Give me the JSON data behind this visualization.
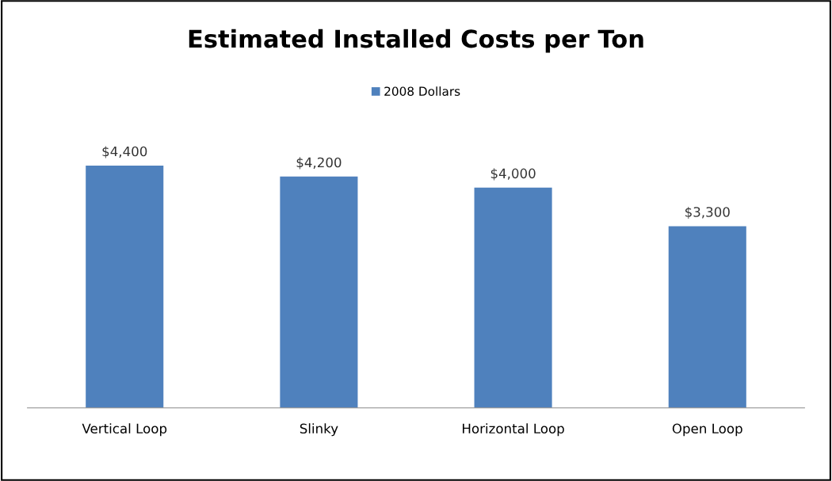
{
  "chart_data": {
    "type": "bar",
    "title": "Estimated Installed Costs per Ton",
    "categories": [
      "Vertical Loop",
      "Slinky",
      "Horizontal Loop",
      "Open Loop"
    ],
    "series": [
      {
        "name": "2008 Dollars",
        "color": "#4f81bd",
        "values": [
          4400,
          4200,
          4000,
          3300
        ],
        "value_labels": [
          "$4,400",
          "$4,200",
          "$4,000",
          "$3,300"
        ]
      }
    ],
    "tick_labels": "x",
    "grid": false,
    "legend": "top"
  }
}
